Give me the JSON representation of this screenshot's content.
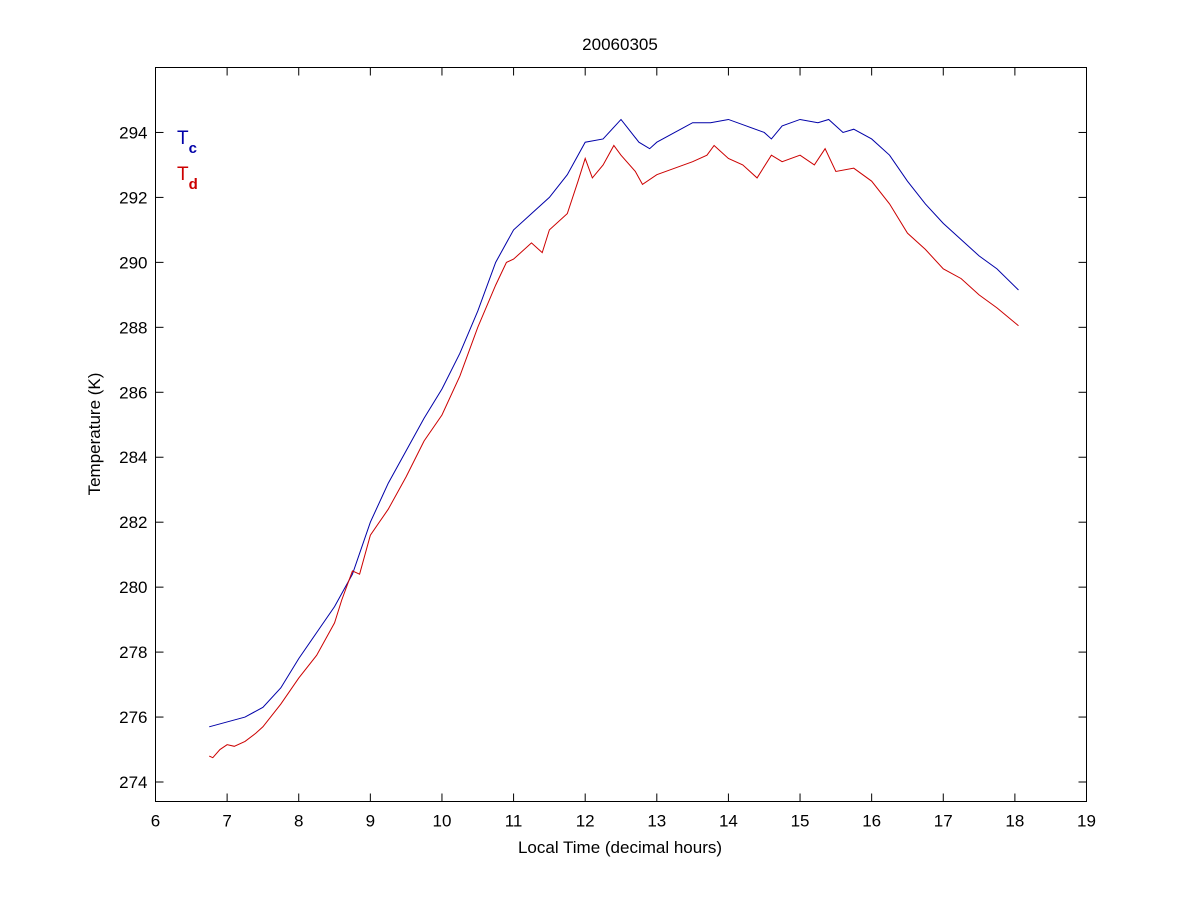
{
  "chart_data": {
    "type": "line",
    "title": "20060305",
    "x_label": "Local Time (decimal hours)",
    "y_label": "Temperature (K)",
    "xlim": [
      6,
      19
    ],
    "xticks": [
      6,
      7,
      8,
      9,
      10,
      11,
      12,
      13,
      14,
      15,
      16,
      17,
      18,
      19
    ],
    "ylim": [
      273.4,
      296
    ],
    "yticks": [
      274,
      276,
      278,
      280,
      282,
      284,
      286,
      288,
      290,
      292,
      294
    ],
    "grid": false,
    "legend": "upper-left",
    "series": [
      {
        "name": "Tc",
        "color": "#0000a8",
        "x": [
          6.75,
          7.0,
          7.25,
          7.5,
          7.75,
          8.0,
          8.25,
          8.5,
          8.75,
          9.0,
          9.25,
          9.5,
          9.75,
          10.0,
          10.25,
          10.5,
          10.75,
          11.0,
          11.25,
          11.5,
          11.75,
          12.0,
          12.25,
          12.5,
          12.75,
          12.9,
          13.0,
          13.25,
          13.5,
          13.75,
          14.0,
          14.25,
          14.5,
          14.6,
          14.75,
          15.0,
          15.25,
          15.4,
          15.6,
          15.75,
          16.0,
          16.25,
          16.5,
          16.75,
          17.0,
          17.25,
          17.5,
          17.75,
          18.05
        ],
        "values": [
          275.7,
          275.85,
          276.0,
          276.3,
          276.9,
          277.8,
          278.6,
          279.4,
          280.4,
          282.0,
          283.2,
          284.2,
          285.2,
          286.1,
          287.2,
          288.5,
          290.0,
          291.0,
          291.5,
          292.0,
          292.7,
          293.7,
          293.8,
          294.4,
          293.7,
          293.5,
          293.7,
          294.0,
          294.3,
          294.3,
          294.4,
          294.2,
          294.0,
          293.8,
          294.2,
          294.4,
          294.3,
          294.4,
          294.0,
          294.1,
          293.8,
          293.3,
          292.5,
          291.8,
          291.2,
          290.7,
          290.2,
          289.8,
          289.15
        ]
      },
      {
        "name": "Td",
        "color": "#cc0000",
        "x": [
          6.75,
          6.8,
          6.9,
          7.0,
          7.1,
          7.25,
          7.4,
          7.5,
          7.75,
          8.0,
          8.25,
          8.5,
          8.6,
          8.75,
          8.85,
          9.0,
          9.25,
          9.5,
          9.75,
          10.0,
          10.25,
          10.5,
          10.75,
          10.9,
          11.0,
          11.25,
          11.4,
          11.5,
          11.75,
          11.9,
          12.0,
          12.1,
          12.25,
          12.4,
          12.5,
          12.7,
          12.8,
          13.0,
          13.25,
          13.5,
          13.7,
          13.8,
          14.0,
          14.2,
          14.4,
          14.6,
          14.75,
          15.0,
          15.2,
          15.35,
          15.5,
          15.75,
          16.0,
          16.25,
          16.5,
          16.75,
          17.0,
          17.25,
          17.5,
          17.75,
          18.05
        ],
        "values": [
          274.8,
          274.75,
          275.0,
          275.15,
          275.1,
          275.25,
          275.5,
          275.7,
          276.4,
          277.2,
          277.9,
          278.9,
          279.6,
          280.5,
          280.4,
          281.6,
          282.4,
          283.4,
          284.5,
          285.3,
          286.5,
          288.0,
          289.3,
          290.0,
          290.1,
          290.6,
          290.3,
          291.0,
          291.5,
          292.5,
          293.2,
          292.6,
          293.0,
          293.6,
          293.3,
          292.8,
          292.4,
          292.7,
          292.9,
          293.1,
          293.3,
          293.6,
          293.2,
          293.0,
          292.6,
          293.3,
          293.1,
          293.3,
          293.0,
          293.5,
          292.8,
          292.9,
          292.5,
          291.8,
          290.9,
          290.4,
          289.8,
          289.5,
          289.0,
          288.6,
          288.05
        ]
      }
    ]
  }
}
